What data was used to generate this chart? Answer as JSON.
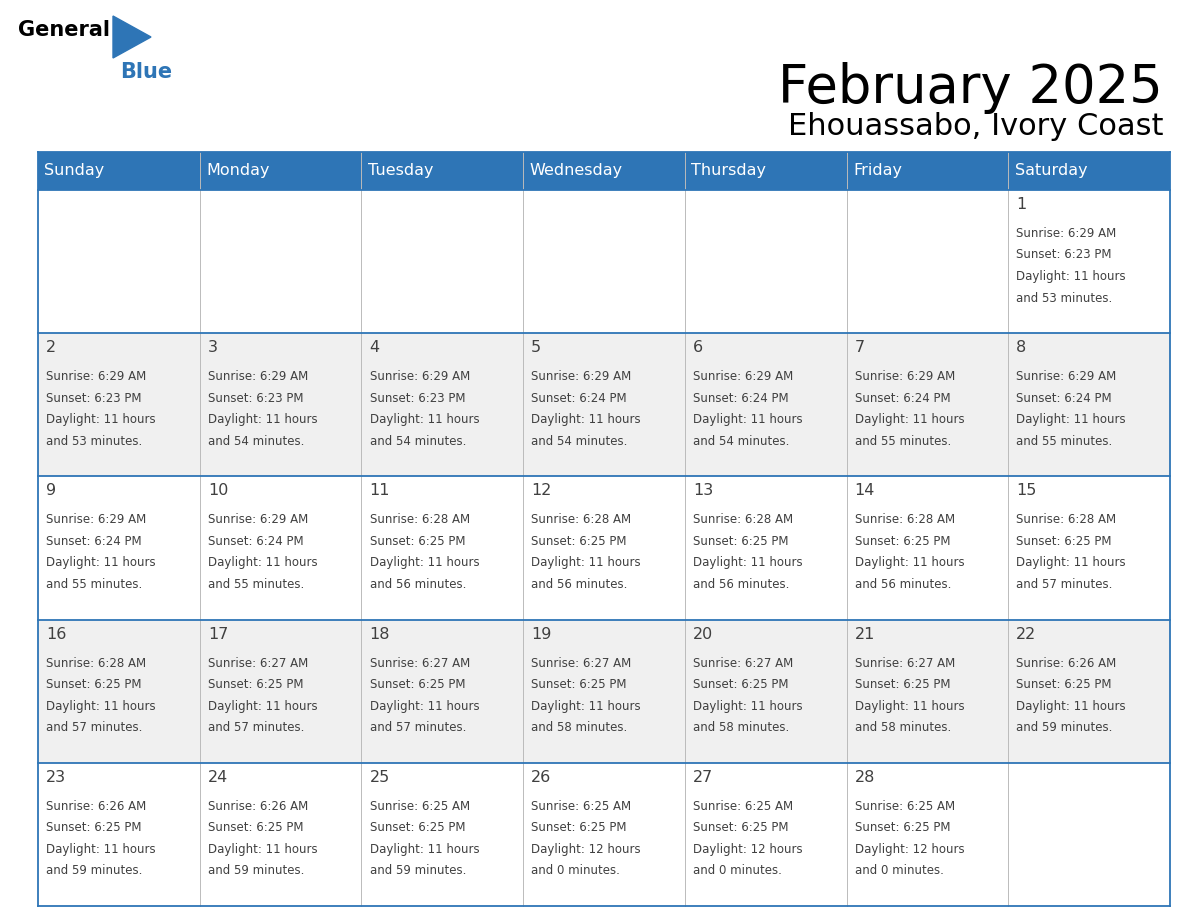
{
  "title": "February 2025",
  "subtitle": "Ehouassabo, Ivory Coast",
  "header_bg": "#2E75B6",
  "header_text_color": "#FFFFFF",
  "cell_bg_light": "#FFFFFF",
  "cell_bg_alt": "#F0F0F0",
  "border_color": "#2E75B6",
  "text_color": "#404040",
  "days_of_week": [
    "Sunday",
    "Monday",
    "Tuesday",
    "Wednesday",
    "Thursday",
    "Friday",
    "Saturday"
  ],
  "calendar": [
    [
      null,
      null,
      null,
      null,
      null,
      null,
      {
        "day": 1,
        "sunrise": "6:29 AM",
        "sunset": "6:23 PM",
        "daylight": "11 hours",
        "minutes": "53 minutes"
      }
    ],
    [
      {
        "day": 2,
        "sunrise": "6:29 AM",
        "sunset": "6:23 PM",
        "daylight": "11 hours",
        "minutes": "53 minutes"
      },
      {
        "day": 3,
        "sunrise": "6:29 AM",
        "sunset": "6:23 PM",
        "daylight": "11 hours",
        "minutes": "54 minutes"
      },
      {
        "day": 4,
        "sunrise": "6:29 AM",
        "sunset": "6:23 PM",
        "daylight": "11 hours",
        "minutes": "54 minutes"
      },
      {
        "day": 5,
        "sunrise": "6:29 AM",
        "sunset": "6:24 PM",
        "daylight": "11 hours",
        "minutes": "54 minutes"
      },
      {
        "day": 6,
        "sunrise": "6:29 AM",
        "sunset": "6:24 PM",
        "daylight": "11 hours",
        "minutes": "54 minutes"
      },
      {
        "day": 7,
        "sunrise": "6:29 AM",
        "sunset": "6:24 PM",
        "daylight": "11 hours",
        "minutes": "55 minutes"
      },
      {
        "day": 8,
        "sunrise": "6:29 AM",
        "sunset": "6:24 PM",
        "daylight": "11 hours",
        "minutes": "55 minutes"
      }
    ],
    [
      {
        "day": 9,
        "sunrise": "6:29 AM",
        "sunset": "6:24 PM",
        "daylight": "11 hours",
        "minutes": "55 minutes"
      },
      {
        "day": 10,
        "sunrise": "6:29 AM",
        "sunset": "6:24 PM",
        "daylight": "11 hours",
        "minutes": "55 minutes"
      },
      {
        "day": 11,
        "sunrise": "6:28 AM",
        "sunset": "6:25 PM",
        "daylight": "11 hours",
        "minutes": "56 minutes"
      },
      {
        "day": 12,
        "sunrise": "6:28 AM",
        "sunset": "6:25 PM",
        "daylight": "11 hours",
        "minutes": "56 minutes"
      },
      {
        "day": 13,
        "sunrise": "6:28 AM",
        "sunset": "6:25 PM",
        "daylight": "11 hours",
        "minutes": "56 minutes"
      },
      {
        "day": 14,
        "sunrise": "6:28 AM",
        "sunset": "6:25 PM",
        "daylight": "11 hours",
        "minutes": "56 minutes"
      },
      {
        "day": 15,
        "sunrise": "6:28 AM",
        "sunset": "6:25 PM",
        "daylight": "11 hours",
        "minutes": "57 minutes"
      }
    ],
    [
      {
        "day": 16,
        "sunrise": "6:28 AM",
        "sunset": "6:25 PM",
        "daylight": "11 hours",
        "minutes": "57 minutes"
      },
      {
        "day": 17,
        "sunrise": "6:27 AM",
        "sunset": "6:25 PM",
        "daylight": "11 hours",
        "minutes": "57 minutes"
      },
      {
        "day": 18,
        "sunrise": "6:27 AM",
        "sunset": "6:25 PM",
        "daylight": "11 hours",
        "minutes": "57 minutes"
      },
      {
        "day": 19,
        "sunrise": "6:27 AM",
        "sunset": "6:25 PM",
        "daylight": "11 hours",
        "minutes": "58 minutes"
      },
      {
        "day": 20,
        "sunrise": "6:27 AM",
        "sunset": "6:25 PM",
        "daylight": "11 hours",
        "minutes": "58 minutes"
      },
      {
        "day": 21,
        "sunrise": "6:27 AM",
        "sunset": "6:25 PM",
        "daylight": "11 hours",
        "minutes": "58 minutes"
      },
      {
        "day": 22,
        "sunrise": "6:26 AM",
        "sunset": "6:25 PM",
        "daylight": "11 hours",
        "minutes": "59 minutes"
      }
    ],
    [
      {
        "day": 23,
        "sunrise": "6:26 AM",
        "sunset": "6:25 PM",
        "daylight": "11 hours",
        "minutes": "59 minutes"
      },
      {
        "day": 24,
        "sunrise": "6:26 AM",
        "sunset": "6:25 PM",
        "daylight": "11 hours",
        "minutes": "59 minutes"
      },
      {
        "day": 25,
        "sunrise": "6:25 AM",
        "sunset": "6:25 PM",
        "daylight": "11 hours",
        "minutes": "59 minutes"
      },
      {
        "day": 26,
        "sunrise": "6:25 AM",
        "sunset": "6:25 PM",
        "daylight": "12 hours",
        "minutes": "0 minutes"
      },
      {
        "day": 27,
        "sunrise": "6:25 AM",
        "sunset": "6:25 PM",
        "daylight": "12 hours",
        "minutes": "0 minutes"
      },
      {
        "day": 28,
        "sunrise": "6:25 AM",
        "sunset": "6:25 PM",
        "daylight": "12 hours",
        "minutes": "0 minutes"
      },
      null
    ]
  ],
  "logo_triangle_color": "#2E75B6",
  "fig_width": 11.88,
  "fig_height": 9.18,
  "dpi": 100
}
